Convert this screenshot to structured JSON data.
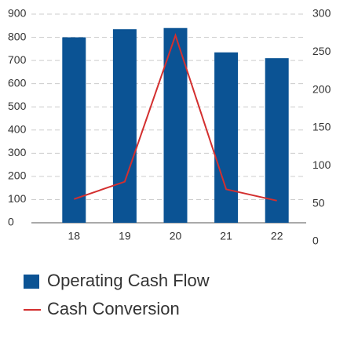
{
  "chart_data": {
    "type": "bar",
    "categories": [
      "18",
      "19",
      "20",
      "21",
      "22"
    ],
    "series": [
      {
        "name": "Operating Cash Flow",
        "type": "bar",
        "color": "#0b5394",
        "values": [
          800,
          835,
          840,
          735,
          710
        ]
      },
      {
        "name": "Cash Conversion",
        "type": "line",
        "color": "#d32f2f",
        "axis": "y2",
        "values": [
          56,
          79,
          272,
          69,
          54
        ]
      }
    ],
    "ylim": [
      0,
      900
    ],
    "yticks": [
      0,
      100,
      200,
      300,
      400,
      500,
      600,
      700,
      800,
      900
    ],
    "y2lim": [
      0,
      300
    ],
    "y2ticks": [
      0,
      50,
      100,
      150,
      200,
      250,
      300
    ],
    "grid": true,
    "legend": "bottom"
  }
}
